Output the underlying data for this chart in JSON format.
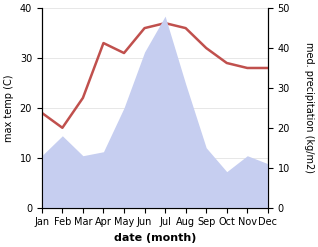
{
  "months": [
    "Jan",
    "Feb",
    "Mar",
    "Apr",
    "May",
    "Jun",
    "Jul",
    "Aug",
    "Sep",
    "Oct",
    "Nov",
    "Dec"
  ],
  "temperature": [
    19,
    16,
    22,
    33,
    31,
    36,
    37,
    36,
    32,
    29,
    28,
    28
  ],
  "precipitation": [
    13,
    18,
    13,
    14,
    25,
    39,
    48,
    31,
    15,
    9,
    13,
    11
  ],
  "temp_color": "#c0504d",
  "precip_fill_color": "#c6cef0",
  "precip_edge_color": "#c6cef0",
  "ylabel_left": "max temp (C)",
  "ylabel_right": "med. precipitation (kg/m2)",
  "xlabel": "date (month)",
  "ylim_left": [
    0,
    40
  ],
  "ylim_right": [
    0,
    50
  ],
  "yticks_left": [
    0,
    10,
    20,
    30,
    40
  ],
  "yticks_right": [
    0,
    10,
    20,
    30,
    40,
    50
  ],
  "background_color": "#ffffff",
  "temp_linewidth": 1.8,
  "label_fontsize": 7,
  "tick_fontsize": 7,
  "xlabel_fontsize": 8
}
